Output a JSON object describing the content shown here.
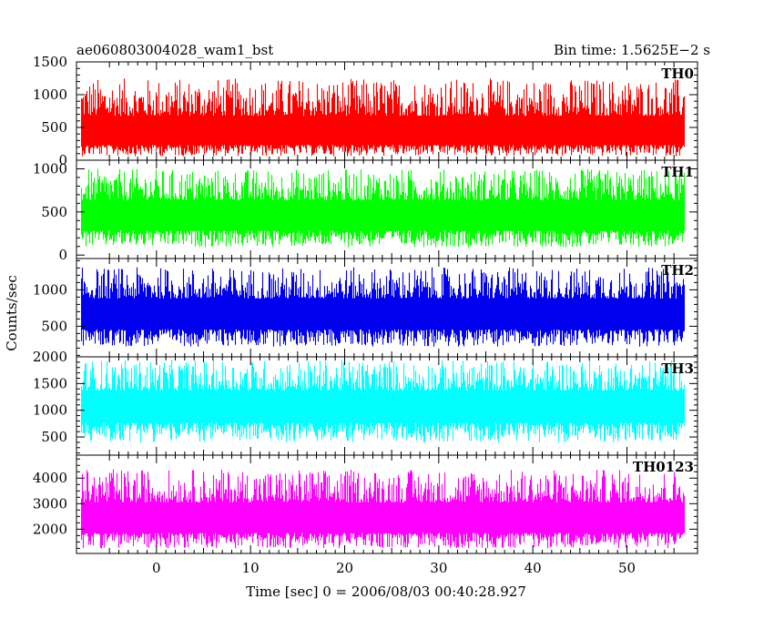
{
  "chart_data": {
    "type": "line",
    "title_left": "ae060803004028_wam1_bst",
    "title_right": "Bin time: 1.5625E−2 s",
    "ylabel": "Counts/sec",
    "xlabel": "Time [sec] 0 = 2006/08/03 00:40:28.927",
    "xlim": [
      -8.5,
      57.5
    ],
    "data_range": [
      -8.0,
      56.0
    ],
    "bin_time": 0.015625,
    "x_ticks": [
      0,
      10,
      20,
      30,
      40,
      50
    ],
    "panels": [
      {
        "name": "TH0",
        "color": "#ff0000",
        "ylim": [
          0,
          1500
        ],
        "y_ticks": [
          0,
          500,
          1000,
          1500
        ],
        "median": 370,
        "envelope": [
          60,
          1250
        ]
      },
      {
        "name": "TH1",
        "color": "#00ff00",
        "ylim": [
          -40,
          1100
        ],
        "y_ticks": [
          0,
          500,
          1000
        ],
        "median": 440,
        "envelope": [
          90,
          1000
        ]
      },
      {
        "name": "TH2",
        "color": "#0000ee",
        "ylim": [
          80,
          1430
        ],
        "y_ticks": [
          500,
          1000
        ],
        "median": 650,
        "envelope": [
          220,
          1310
        ]
      },
      {
        "name": "TH3",
        "color": "#00ffff",
        "ylim": [
          160,
          2000
        ],
        "y_ticks": [
          500,
          1000,
          1500,
          2000
        ],
        "median": 1060,
        "envelope": [
          400,
          1950
        ]
      },
      {
        "name": "TH0123",
        "color": "#ff00ff",
        "ylim": [
          1050,
          4900
        ],
        "y_ticks": [
          2000,
          3000,
          4000
        ],
        "median": 2350,
        "envelope": [
          1250,
          4350
        ]
      }
    ]
  }
}
